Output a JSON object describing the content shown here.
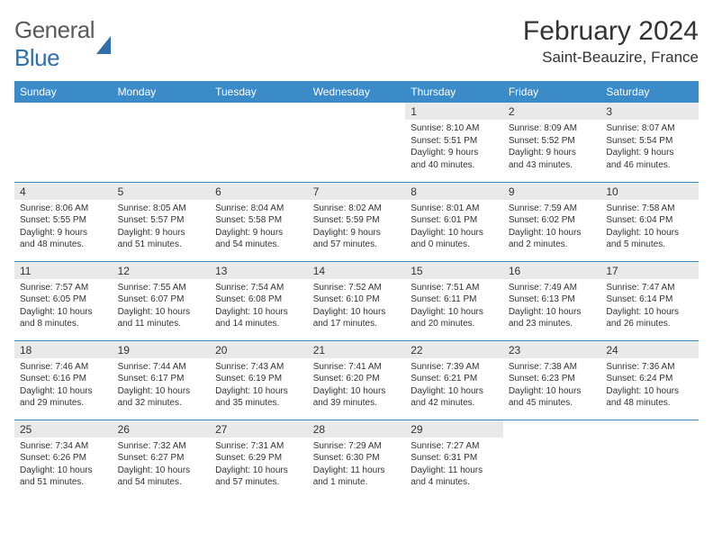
{
  "logo": {
    "word1": "General",
    "word2": "Blue"
  },
  "title": "February 2024",
  "location": "Saint-Beauzire, France",
  "colors": {
    "header_bg": "#3b8bc9",
    "header_text": "#ffffff",
    "daynum_bg": "#e9e9e9",
    "border": "#3b8bc9",
    "text": "#333333",
    "logo_gray": "#5a5a5a",
    "logo_blue": "#2f6fae",
    "page_bg": "#ffffff"
  },
  "layout": {
    "columns": 7
  },
  "day_headers": [
    "Sunday",
    "Monday",
    "Tuesday",
    "Wednesday",
    "Thursday",
    "Friday",
    "Saturday"
  ],
  "weeks": [
    [
      {
        "empty": true
      },
      {
        "empty": true
      },
      {
        "empty": true
      },
      {
        "empty": true
      },
      {
        "n": "1",
        "sunrise": "Sunrise: 8:10 AM",
        "sunset": "Sunset: 5:51 PM",
        "dl1": "Daylight: 9 hours",
        "dl2": "and 40 minutes."
      },
      {
        "n": "2",
        "sunrise": "Sunrise: 8:09 AM",
        "sunset": "Sunset: 5:52 PM",
        "dl1": "Daylight: 9 hours",
        "dl2": "and 43 minutes."
      },
      {
        "n": "3",
        "sunrise": "Sunrise: 8:07 AM",
        "sunset": "Sunset: 5:54 PM",
        "dl1": "Daylight: 9 hours",
        "dl2": "and 46 minutes."
      }
    ],
    [
      {
        "n": "4",
        "sunrise": "Sunrise: 8:06 AM",
        "sunset": "Sunset: 5:55 PM",
        "dl1": "Daylight: 9 hours",
        "dl2": "and 48 minutes."
      },
      {
        "n": "5",
        "sunrise": "Sunrise: 8:05 AM",
        "sunset": "Sunset: 5:57 PM",
        "dl1": "Daylight: 9 hours",
        "dl2": "and 51 minutes."
      },
      {
        "n": "6",
        "sunrise": "Sunrise: 8:04 AM",
        "sunset": "Sunset: 5:58 PM",
        "dl1": "Daylight: 9 hours",
        "dl2": "and 54 minutes."
      },
      {
        "n": "7",
        "sunrise": "Sunrise: 8:02 AM",
        "sunset": "Sunset: 5:59 PM",
        "dl1": "Daylight: 9 hours",
        "dl2": "and 57 minutes."
      },
      {
        "n": "8",
        "sunrise": "Sunrise: 8:01 AM",
        "sunset": "Sunset: 6:01 PM",
        "dl1": "Daylight: 10 hours",
        "dl2": "and 0 minutes."
      },
      {
        "n": "9",
        "sunrise": "Sunrise: 7:59 AM",
        "sunset": "Sunset: 6:02 PM",
        "dl1": "Daylight: 10 hours",
        "dl2": "and 2 minutes."
      },
      {
        "n": "10",
        "sunrise": "Sunrise: 7:58 AM",
        "sunset": "Sunset: 6:04 PM",
        "dl1": "Daylight: 10 hours",
        "dl2": "and 5 minutes."
      }
    ],
    [
      {
        "n": "11",
        "sunrise": "Sunrise: 7:57 AM",
        "sunset": "Sunset: 6:05 PM",
        "dl1": "Daylight: 10 hours",
        "dl2": "and 8 minutes."
      },
      {
        "n": "12",
        "sunrise": "Sunrise: 7:55 AM",
        "sunset": "Sunset: 6:07 PM",
        "dl1": "Daylight: 10 hours",
        "dl2": "and 11 minutes."
      },
      {
        "n": "13",
        "sunrise": "Sunrise: 7:54 AM",
        "sunset": "Sunset: 6:08 PM",
        "dl1": "Daylight: 10 hours",
        "dl2": "and 14 minutes."
      },
      {
        "n": "14",
        "sunrise": "Sunrise: 7:52 AM",
        "sunset": "Sunset: 6:10 PM",
        "dl1": "Daylight: 10 hours",
        "dl2": "and 17 minutes."
      },
      {
        "n": "15",
        "sunrise": "Sunrise: 7:51 AM",
        "sunset": "Sunset: 6:11 PM",
        "dl1": "Daylight: 10 hours",
        "dl2": "and 20 minutes."
      },
      {
        "n": "16",
        "sunrise": "Sunrise: 7:49 AM",
        "sunset": "Sunset: 6:13 PM",
        "dl1": "Daylight: 10 hours",
        "dl2": "and 23 minutes."
      },
      {
        "n": "17",
        "sunrise": "Sunrise: 7:47 AM",
        "sunset": "Sunset: 6:14 PM",
        "dl1": "Daylight: 10 hours",
        "dl2": "and 26 minutes."
      }
    ],
    [
      {
        "n": "18",
        "sunrise": "Sunrise: 7:46 AM",
        "sunset": "Sunset: 6:16 PM",
        "dl1": "Daylight: 10 hours",
        "dl2": "and 29 minutes."
      },
      {
        "n": "19",
        "sunrise": "Sunrise: 7:44 AM",
        "sunset": "Sunset: 6:17 PM",
        "dl1": "Daylight: 10 hours",
        "dl2": "and 32 minutes."
      },
      {
        "n": "20",
        "sunrise": "Sunrise: 7:43 AM",
        "sunset": "Sunset: 6:19 PM",
        "dl1": "Daylight: 10 hours",
        "dl2": "and 35 minutes."
      },
      {
        "n": "21",
        "sunrise": "Sunrise: 7:41 AM",
        "sunset": "Sunset: 6:20 PM",
        "dl1": "Daylight: 10 hours",
        "dl2": "and 39 minutes."
      },
      {
        "n": "22",
        "sunrise": "Sunrise: 7:39 AM",
        "sunset": "Sunset: 6:21 PM",
        "dl1": "Daylight: 10 hours",
        "dl2": "and 42 minutes."
      },
      {
        "n": "23",
        "sunrise": "Sunrise: 7:38 AM",
        "sunset": "Sunset: 6:23 PM",
        "dl1": "Daylight: 10 hours",
        "dl2": "and 45 minutes."
      },
      {
        "n": "24",
        "sunrise": "Sunrise: 7:36 AM",
        "sunset": "Sunset: 6:24 PM",
        "dl1": "Daylight: 10 hours",
        "dl2": "and 48 minutes."
      }
    ],
    [
      {
        "n": "25",
        "sunrise": "Sunrise: 7:34 AM",
        "sunset": "Sunset: 6:26 PM",
        "dl1": "Daylight: 10 hours",
        "dl2": "and 51 minutes."
      },
      {
        "n": "26",
        "sunrise": "Sunrise: 7:32 AM",
        "sunset": "Sunset: 6:27 PM",
        "dl1": "Daylight: 10 hours",
        "dl2": "and 54 minutes."
      },
      {
        "n": "27",
        "sunrise": "Sunrise: 7:31 AM",
        "sunset": "Sunset: 6:29 PM",
        "dl1": "Daylight: 10 hours",
        "dl2": "and 57 minutes."
      },
      {
        "n": "28",
        "sunrise": "Sunrise: 7:29 AM",
        "sunset": "Sunset: 6:30 PM",
        "dl1": "Daylight: 11 hours",
        "dl2": "and 1 minute."
      },
      {
        "n": "29",
        "sunrise": "Sunrise: 7:27 AM",
        "sunset": "Sunset: 6:31 PM",
        "dl1": "Daylight: 11 hours",
        "dl2": "and 4 minutes."
      },
      {
        "empty": true
      },
      {
        "empty": true
      }
    ]
  ]
}
